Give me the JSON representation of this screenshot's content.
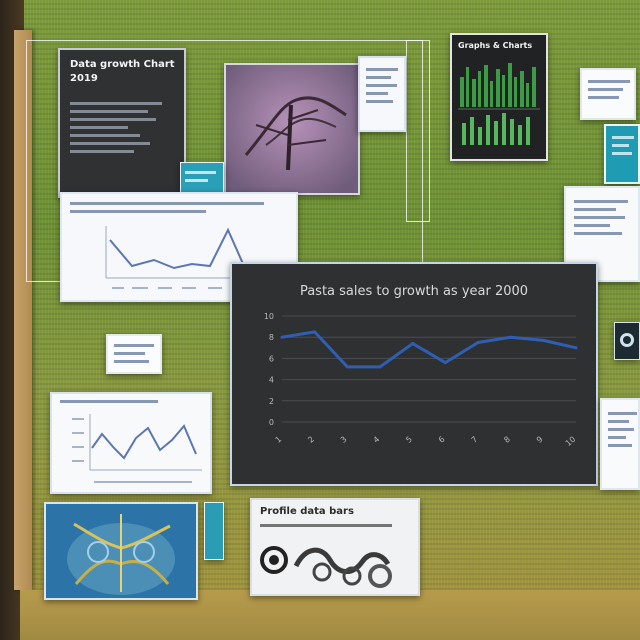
{
  "main_chart": {
    "title": "Pasta sales to growth as year 2000",
    "xlabel": "",
    "color_line": "#2f5fb4",
    "color_panel": "#3b3b3b"
  },
  "chart_data": {
    "type": "line",
    "title": "Pasta sales to growth as year 2000",
    "categories": [
      "1",
      "2",
      "3",
      "4",
      "5",
      "6",
      "7",
      "8",
      "9",
      "10"
    ],
    "series": [
      {
        "name": "",
        "values": [
          8.0,
          8.5,
          5.2,
          5.2,
          7.4,
          5.6,
          7.5,
          8.0,
          7.7,
          7.0
        ]
      }
    ],
    "ylim": [
      0,
      10
    ],
    "grid": true,
    "legend": "none"
  },
  "panels": {
    "top_dark_title": "Data growth Chart 2019",
    "tower_title": "Graphs & Charts",
    "bottom_card_title": "Profile data bars"
  },
  "icons": [
    "grass-background",
    "photo-icon",
    "chart-icon",
    "signature-icon"
  ]
}
